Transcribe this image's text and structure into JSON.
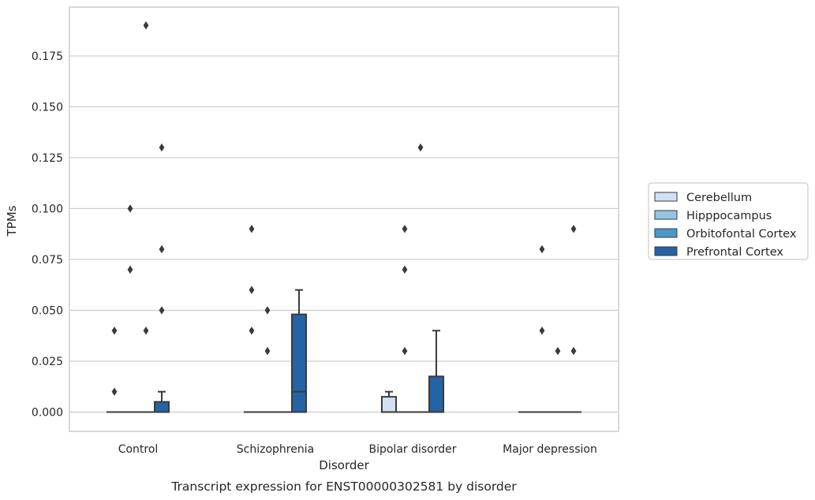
{
  "caption": "Transcript expression for ENST00000302581 by disorder",
  "chart_data": {
    "type": "boxplot",
    "xlabel": "Disorder",
    "ylabel": "TPMs",
    "categories": [
      "Control",
      "Schizophrenia",
      "Bipolar disorder",
      "Major depression"
    ],
    "ylim": [
      -0.0095,
      0.199
    ],
    "yticks": [
      0.0,
      0.025,
      0.05,
      0.075,
      0.1,
      0.125,
      0.15,
      0.175
    ],
    "ytick_labels": [
      "0.000",
      "0.025",
      "0.050",
      "0.075",
      "0.100",
      "0.125",
      "0.150",
      "0.175"
    ],
    "grid": "horizontal",
    "legend_position": "right",
    "series": [
      {
        "name": "Cerebellum",
        "color": "#d0e1f2",
        "boxes": [
          {
            "q1": 0,
            "median": 0,
            "q3": 0,
            "whisker_low": 0,
            "whisker_high": 0,
            "outliers": [
              0.01,
              0.04
            ]
          },
          {
            "q1": 0,
            "median": 0,
            "q3": 0,
            "whisker_low": 0,
            "whisker_high": 0,
            "outliers": [
              0.04,
              0.06,
              0.09
            ]
          },
          {
            "q1": 0,
            "median": 0,
            "q3": 0.0075,
            "whisker_low": 0,
            "whisker_high": 0.01,
            "outliers": []
          },
          {
            "q1": 0,
            "median": 0,
            "q3": 0,
            "whisker_low": 0,
            "whisker_high": 0,
            "outliers": []
          }
        ]
      },
      {
        "name": "Hipppocampus",
        "color": "#94c4df",
        "boxes": [
          {
            "q1": 0,
            "median": 0,
            "q3": 0,
            "whisker_low": 0,
            "whisker_high": 0,
            "outliers": [
              0.07,
              0.1
            ]
          },
          {
            "q1": 0,
            "median": 0,
            "q3": 0,
            "whisker_low": 0,
            "whisker_high": 0,
            "outliers": [
              0.03,
              0.05
            ]
          },
          {
            "q1": 0,
            "median": 0,
            "q3": 0,
            "whisker_low": 0,
            "whisker_high": 0,
            "outliers": [
              0.03,
              0.07,
              0.09
            ]
          },
          {
            "q1": 0,
            "median": 0,
            "q3": 0,
            "whisker_low": 0,
            "whisker_high": 0,
            "outliers": [
              0.04,
              0.08
            ]
          }
        ]
      },
      {
        "name": "Orbitofontal Cortex",
        "color": "#4a98c9",
        "boxes": [
          {
            "q1": 0,
            "median": 0,
            "q3": 0,
            "whisker_low": 0,
            "whisker_high": 0,
            "outliers": [
              0.04,
              0.19
            ]
          },
          {
            "q1": 0,
            "median": 0,
            "q3": 0,
            "whisker_low": 0,
            "whisker_high": 0,
            "outliers": []
          },
          {
            "q1": 0,
            "median": 0,
            "q3": 0,
            "whisker_low": 0,
            "whisker_high": 0,
            "outliers": [
              0.13
            ]
          },
          {
            "q1": 0,
            "median": 0,
            "q3": 0,
            "whisker_low": 0,
            "whisker_high": 0,
            "outliers": [
              0.03
            ]
          }
        ]
      },
      {
        "name": "Prefrontal Cortex",
        "color": "#2464a6",
        "boxes": [
          {
            "q1": 0,
            "median": 0,
            "q3": 0.005,
            "whisker_low": 0,
            "whisker_high": 0.01,
            "outliers": [
              0.05,
              0.08,
              0.13
            ]
          },
          {
            "q1": 0,
            "median": 0.01,
            "q3": 0.048,
            "whisker_low": 0,
            "whisker_high": 0.06,
            "outliers": []
          },
          {
            "q1": 0,
            "median": 0,
            "q3": 0.0175,
            "whisker_low": 0,
            "whisker_high": 0.04,
            "outliers": []
          },
          {
            "q1": 0,
            "median": 0,
            "q3": 0,
            "whisker_low": 0,
            "whisker_high": 0,
            "outliers": [
              0.03,
              0.09
            ]
          }
        ]
      }
    ]
  }
}
